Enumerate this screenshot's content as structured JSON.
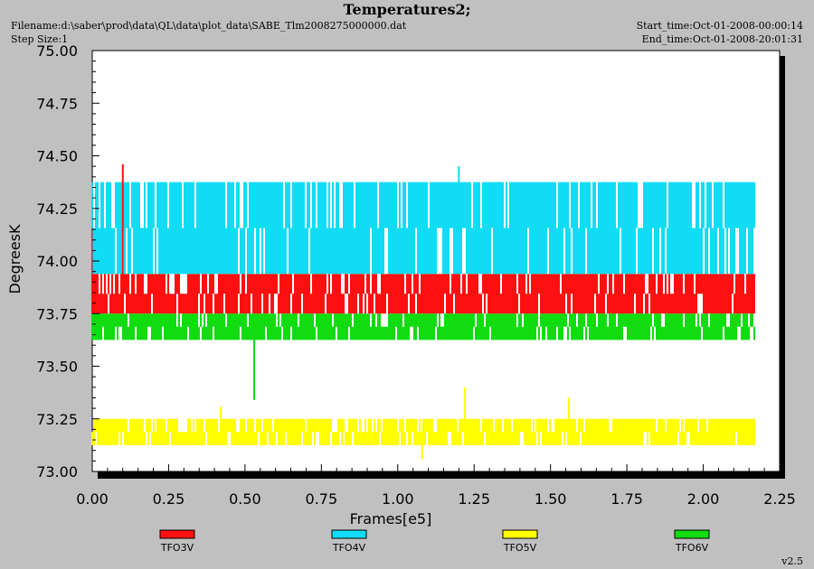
{
  "header": {
    "title": "Temperatures2;",
    "filename": "Filename:d:\\saber\\prod\\data\\QL\\data\\plot_data\\SABE_Tlm2008275000000.dat",
    "step_size": "Step Size:1",
    "start_time": "Start_time:Oct-01-2008-00:00:14",
    "end_time": "End_time:Oct-01-2008-20:01:31"
  },
  "version": "v2.5",
  "chart_data": {
    "type": "line",
    "title": "Temperatures2;",
    "xlabel": "Frames[e5]",
    "ylabel": "DegreesK",
    "xlim": [
      0.0,
      2.25
    ],
    "ylim": [
      73.0,
      75.0
    ],
    "x_ticks": [
      "0.00",
      "0.25",
      "0.50",
      "0.75",
      "1.00",
      "1.25",
      "1.50",
      "1.75",
      "2.00",
      "2.25"
    ],
    "y_ticks": [
      "73.00",
      "73.25",
      "73.50",
      "73.75",
      "74.00",
      "74.25",
      "74.50",
      "74.75",
      "75.00"
    ],
    "x_end": 2.17,
    "legend_position": "bottom",
    "series": [
      {
        "name": "TFO3V",
        "color": "#ff1010",
        "band": [
          73.75,
          73.938
        ],
        "spikes": [
          [
            0.1,
            74.46
          ]
        ]
      },
      {
        "name": "TFO4V",
        "color": "#10dcf5",
        "band": [
          73.938,
          74.375
        ],
        "spikes": [
          [
            1.2,
            74.45
          ]
        ]
      },
      {
        "name": "TFO5V",
        "color": "#ffff00",
        "band": [
          73.125,
          73.25
        ],
        "spikes": [
          [
            0.42,
            73.31
          ],
          [
            1.08,
            73.06
          ],
          [
            1.22,
            73.4
          ],
          [
            1.56,
            73.35
          ]
        ]
      },
      {
        "name": "TFO6V",
        "color": "#10dc10",
        "band": [
          73.625,
          73.75
        ],
        "spikes": [
          [
            0.53,
            73.34
          ]
        ]
      }
    ]
  }
}
